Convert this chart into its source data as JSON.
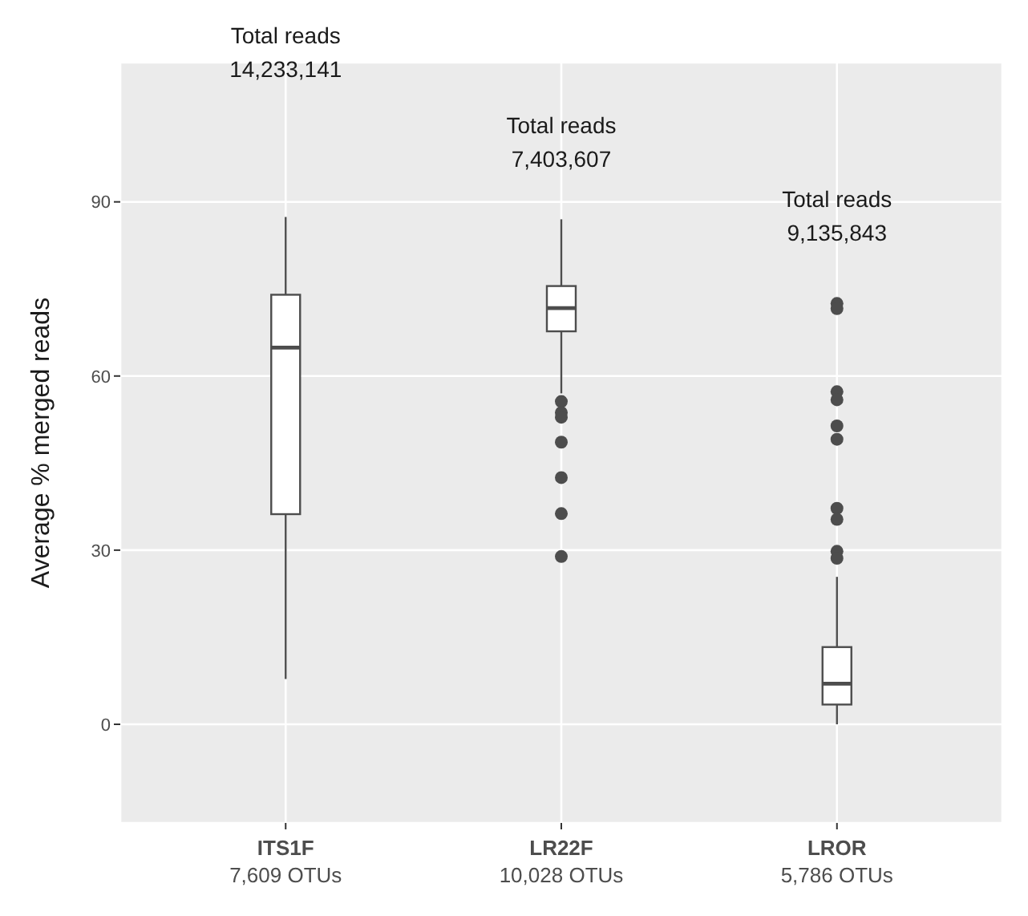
{
  "chart_data": {
    "type": "box",
    "categories": [
      "ITS1F\n7,609 OTUs",
      "LR22F\n10,028 OTUs",
      "LROR\n5,786 OTUs"
    ],
    "ylabel": "Average % merged reads",
    "ylim": [
      -17,
      114
    ],
    "yticks": [
      0,
      30,
      60,
      90
    ],
    "grid": true,
    "color": "#4d4d4d",
    "boxes": [
      {
        "low": 7.8,
        "q1": 36.2,
        "median": 64.9,
        "q3": 74.0,
        "high": 87.4
      },
      {
        "low": 57,
        "q1": 67.7,
        "median": 71.7,
        "q3": 75.5,
        "high": 87,
        "outliers": [
          55.6,
          53.7,
          52.9,
          48.6,
          42.5,
          36.3,
          28.9
        ]
      },
      {
        "low": 0,
        "q1": 3.4,
        "median": 7.0,
        "q3": 13.3,
        "high": 25.4,
        "outliers": [
          72.5,
          71.6,
          57.3,
          55.9,
          51.4,
          49.1,
          37.2,
          35.3,
          29.8,
          28.6
        ]
      }
    ],
    "annotations": [
      "Total reads\n14,233,141",
      "Total reads\n7,403,607",
      "Total reads\n9,135,843"
    ]
  }
}
